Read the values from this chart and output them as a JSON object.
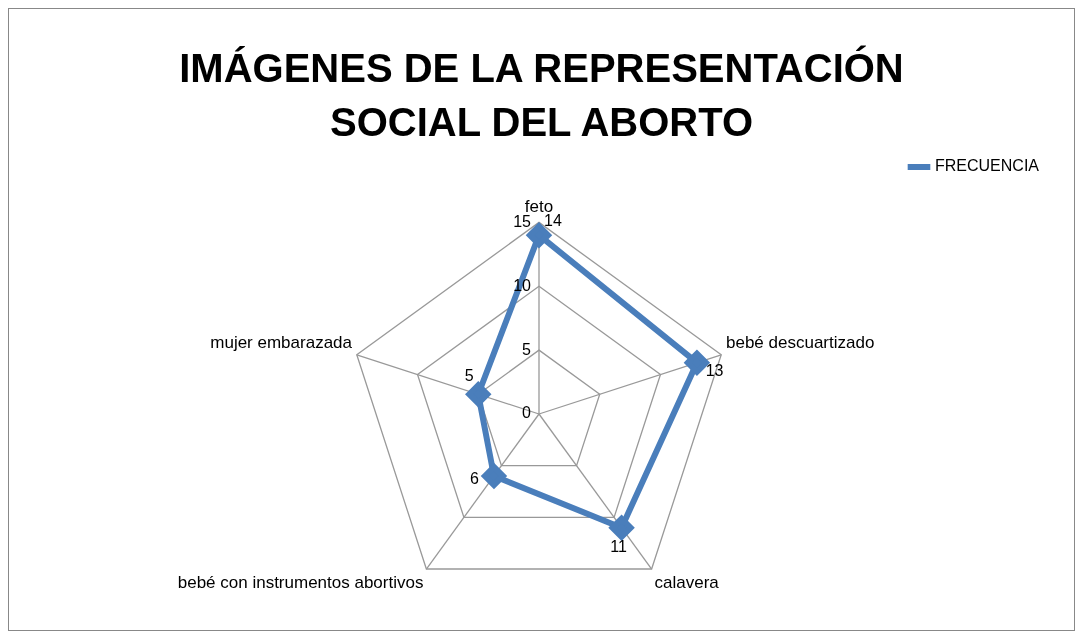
{
  "chart_data": {
    "type": "radar",
    "title": "IMÁGENES DE LA REPRESENTACIÓN SOCIAL DEL ABORTO",
    "categories": [
      "feto",
      "bebé descuartizado",
      "calavera",
      "bebé con instrumentos abortivos",
      "mujer embarazada"
    ],
    "series": [
      {
        "name": "FRECUENCIA",
        "color": "#4a7ebb",
        "values": [
          14,
          13,
          11,
          6,
          5
        ]
      }
    ],
    "ylim": [
      0,
      15
    ],
    "yticks": [
      0,
      5,
      10,
      15
    ],
    "grid": true,
    "legend": "top right",
    "marker": "diamond",
    "data_labels": true
  }
}
